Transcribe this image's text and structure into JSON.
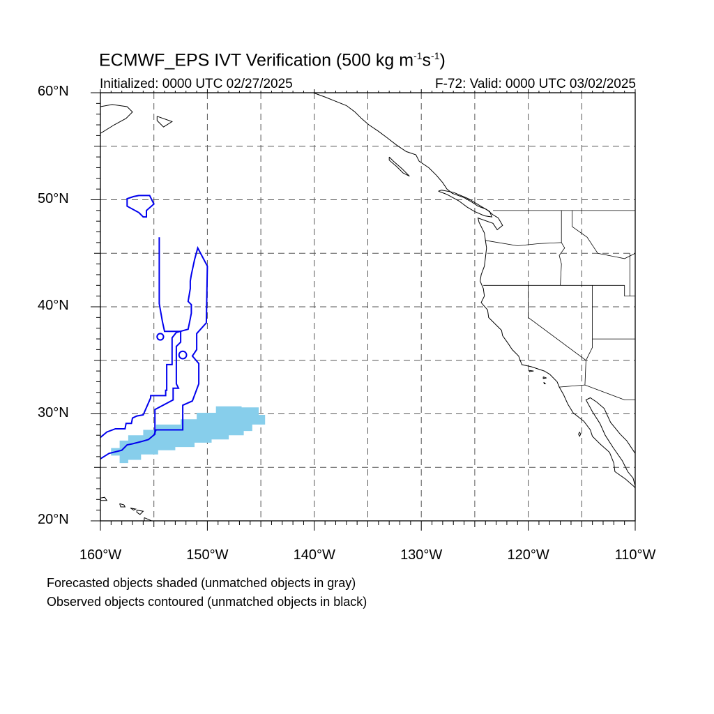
{
  "title": {
    "main": "ECMWF_EPS IVT Verification (500 kg m",
    "exp1": "-1",
    "mid": "s",
    "exp2": "-1",
    "close": ")"
  },
  "initialized": "Initialized: 0000 UTC 02/27/2025",
  "valid": "F-72: Valid: 0000 UTC 03/02/2025",
  "captions": {
    "forecast": "Forecasted objects shaded (unmatched objects in gray)",
    "observed": "Observed objects contoured (unmatched objects in black)"
  },
  "colors": {
    "forecast_fill": "#87ceeb",
    "observed_line": "#0000ee",
    "coast": "#000000",
    "grid": "#555555"
  },
  "chart_data": {
    "type": "map",
    "lon_range": [
      -160,
      -110
    ],
    "lat_range": [
      20,
      60
    ],
    "lat_ticks": [
      {
        "value": 60,
        "label": "60°N"
      },
      {
        "value": 50,
        "label": "50°N"
      },
      {
        "value": 40,
        "label": "40°N"
      },
      {
        "value": 30,
        "label": "30°N"
      },
      {
        "value": 20,
        "label": "20°N"
      }
    ],
    "lon_ticks": [
      {
        "value": -160,
        "label": "160°W"
      },
      {
        "value": -150,
        "label": "150°W"
      },
      {
        "value": -140,
        "label": "140°W"
      },
      {
        "value": -130,
        "label": "130°W"
      },
      {
        "value": -120,
        "label": "120°W"
      },
      {
        "value": -110,
        "label": "110°W"
      }
    ],
    "grid_dashed_every_deg": 5,
    "forecast_object": [
      [
        -158.2,
        25.4
      ],
      [
        -158.2,
        26.1
      ],
      [
        -159.0,
        26.1
      ],
      [
        -159.0,
        26.8
      ],
      [
        -158.2,
        26.8
      ],
      [
        -158.2,
        27.5
      ],
      [
        -157.4,
        27.5
      ],
      [
        -157.4,
        28.0
      ],
      [
        -156.0,
        28.0
      ],
      [
        -156.0,
        28.5
      ],
      [
        -154.8,
        28.5
      ],
      [
        -154.8,
        29.0
      ],
      [
        -152.5,
        29.0
      ],
      [
        -152.5,
        29.5
      ],
      [
        -151.0,
        29.5
      ],
      [
        -151.0,
        30.1
      ],
      [
        -149.2,
        30.1
      ],
      [
        -149.2,
        30.7
      ],
      [
        -146.8,
        30.7
      ],
      [
        -146.8,
        30.6
      ],
      [
        -145.2,
        30.6
      ],
      [
        -145.2,
        29.9
      ],
      [
        -144.6,
        29.9
      ],
      [
        -144.6,
        29.0
      ],
      [
        -145.8,
        29.0
      ],
      [
        -145.8,
        28.4
      ],
      [
        -146.6,
        28.4
      ],
      [
        -146.6,
        28.0
      ],
      [
        -148.0,
        28.0
      ],
      [
        -148.0,
        27.6
      ],
      [
        -149.6,
        27.6
      ],
      [
        -149.6,
        27.3
      ],
      [
        -151.2,
        27.3
      ],
      [
        -151.2,
        26.9
      ],
      [
        -153.0,
        26.9
      ],
      [
        -153.0,
        26.6
      ],
      [
        -154.6,
        26.6
      ],
      [
        -154.6,
        26.2
      ],
      [
        -156.2,
        26.2
      ],
      [
        -156.2,
        25.7
      ],
      [
        -157.4,
        25.7
      ],
      [
        -157.4,
        25.4
      ]
    ],
    "observed_objects": [
      [
        [
          -154.5,
          46.5
        ],
        [
          -154.5,
          43.5
        ],
        [
          -154.5,
          40.3
        ],
        [
          -154.2,
          38.6
        ],
        [
          -154.0,
          37.7
        ],
        [
          -152.5,
          37.7
        ],
        [
          -152.5,
          36.7
        ],
        [
          -152.9,
          36.3
        ],
        [
          -152.9,
          32.8
        ],
        [
          -152.7,
          32.4
        ],
        [
          -153.2,
          32.4
        ],
        [
          -153.2,
          31.3
        ],
        [
          -154.9,
          30.4
        ],
        [
          -154.9,
          28.1
        ],
        [
          -155.5,
          27.6
        ],
        [
          -156.2,
          27.4
        ],
        [
          -157.0,
          27.2
        ],
        [
          -157.5,
          27.1
        ],
        [
          -158.0,
          26.6
        ],
        [
          -159.2,
          26.3
        ],
        [
          -160.0,
          25.8
        ]
      ],
      [
        [
          -160.0,
          27.8
        ],
        [
          -159.4,
          28.3
        ],
        [
          -158.6,
          28.6
        ],
        [
          -157.7,
          28.6
        ],
        [
          -157.6,
          29.1
        ],
        [
          -157.1,
          29.1
        ],
        [
          -157.0,
          29.6
        ],
        [
          -156.6,
          29.8
        ],
        [
          -156.0,
          29.9
        ],
        [
          -155.3,
          31.5
        ],
        [
          -155.3,
          31.7
        ],
        [
          -153.9,
          31.7
        ],
        [
          -153.9,
          32.2
        ],
        [
          -153.8,
          32.2
        ],
        [
          -153.8,
          34.6
        ],
        [
          -153.3,
          34.6
        ],
        [
          -153.3,
          37.1
        ],
        [
          -152.9,
          37.6
        ],
        [
          -151.8,
          37.9
        ],
        [
          -151.6,
          38.9
        ],
        [
          -151.5,
          39.4
        ],
        [
          -151.5,
          40.2
        ],
        [
          -151.8,
          40.5
        ],
        [
          -151.6,
          41.7
        ],
        [
          -151.6,
          42.4
        ],
        [
          -151.5,
          43.0
        ],
        [
          -151.2,
          44.4
        ],
        [
          -150.9,
          45.5
        ],
        [
          -150.0,
          43.8
        ],
        [
          -150.1,
          38.5
        ],
        [
          -151.0,
          37.5
        ],
        [
          -151.0,
          36.0
        ],
        [
          -151.4,
          35.4
        ],
        [
          -150.8,
          34.7
        ],
        [
          -150.8,
          32.8
        ],
        [
          -151.4,
          31.2
        ],
        [
          -152.3,
          30.8
        ],
        [
          -152.3,
          28.5
        ],
        [
          -154.8,
          28.5
        ],
        [
          -155.0,
          28.0
        ]
      ],
      [
        [
          -156.4,
          50.4
        ],
        [
          -155.4,
          50.4
        ],
        [
          -155.0,
          49.6
        ],
        [
          -155.7,
          49.0
        ],
        [
          -155.7,
          48.4
        ],
        [
          -156.0,
          48.4
        ],
        [
          -156.4,
          48.8
        ],
        [
          -157.5,
          49.4
        ],
        [
          -157.5,
          50.1
        ],
        [
          -156.9,
          50.3
        ],
        [
          -156.4,
          50.4
        ]
      ]
    ],
    "observed_blobs": [
      {
        "lon": -152.3,
        "lat": 35.5,
        "r": 0.35
      },
      {
        "lon": -154.4,
        "lat": 37.2,
        "r": 0.3
      }
    ]
  }
}
